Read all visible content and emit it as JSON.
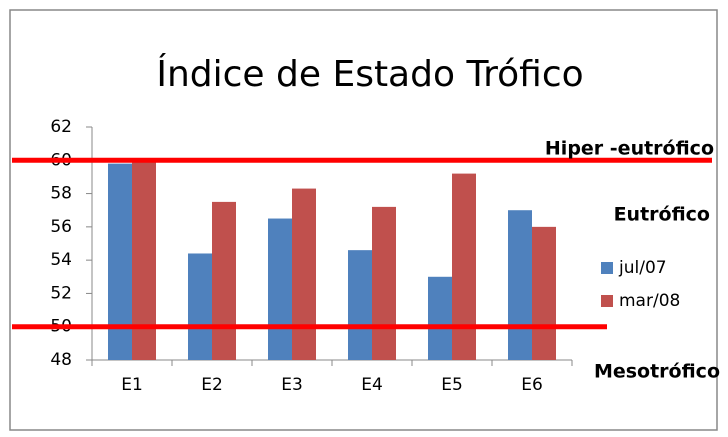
{
  "chart_data": {
    "type": "bar",
    "title": "Índice de Estado Trófico",
    "categories": [
      "E1",
      "E2",
      "E3",
      "E4",
      "E5",
      "E6"
    ],
    "series": [
      {
        "name": "jul/07",
        "color": "#4f81bd",
        "values": [
          59.8,
          54.4,
          56.5,
          54.6,
          53.0,
          57.0
        ]
      },
      {
        "name": "mar/08",
        "color": "#c0504d",
        "values": [
          60.0,
          57.5,
          58.3,
          57.2,
          59.2,
          56.0
        ]
      }
    ],
    "ylim": [
      48,
      62
    ],
    "yticks": [
      48,
      50,
      52,
      54,
      56,
      58,
      60,
      62
    ],
    "legend": "right",
    "reference_lines": [
      {
        "value": 60,
        "color": "#ff0000"
      },
      {
        "value": 50,
        "color": "#ff0000"
      }
    ],
    "annotations": [
      "Hiper -eutrófico",
      "Eutrófico",
      "Mesotrófico"
    ]
  }
}
